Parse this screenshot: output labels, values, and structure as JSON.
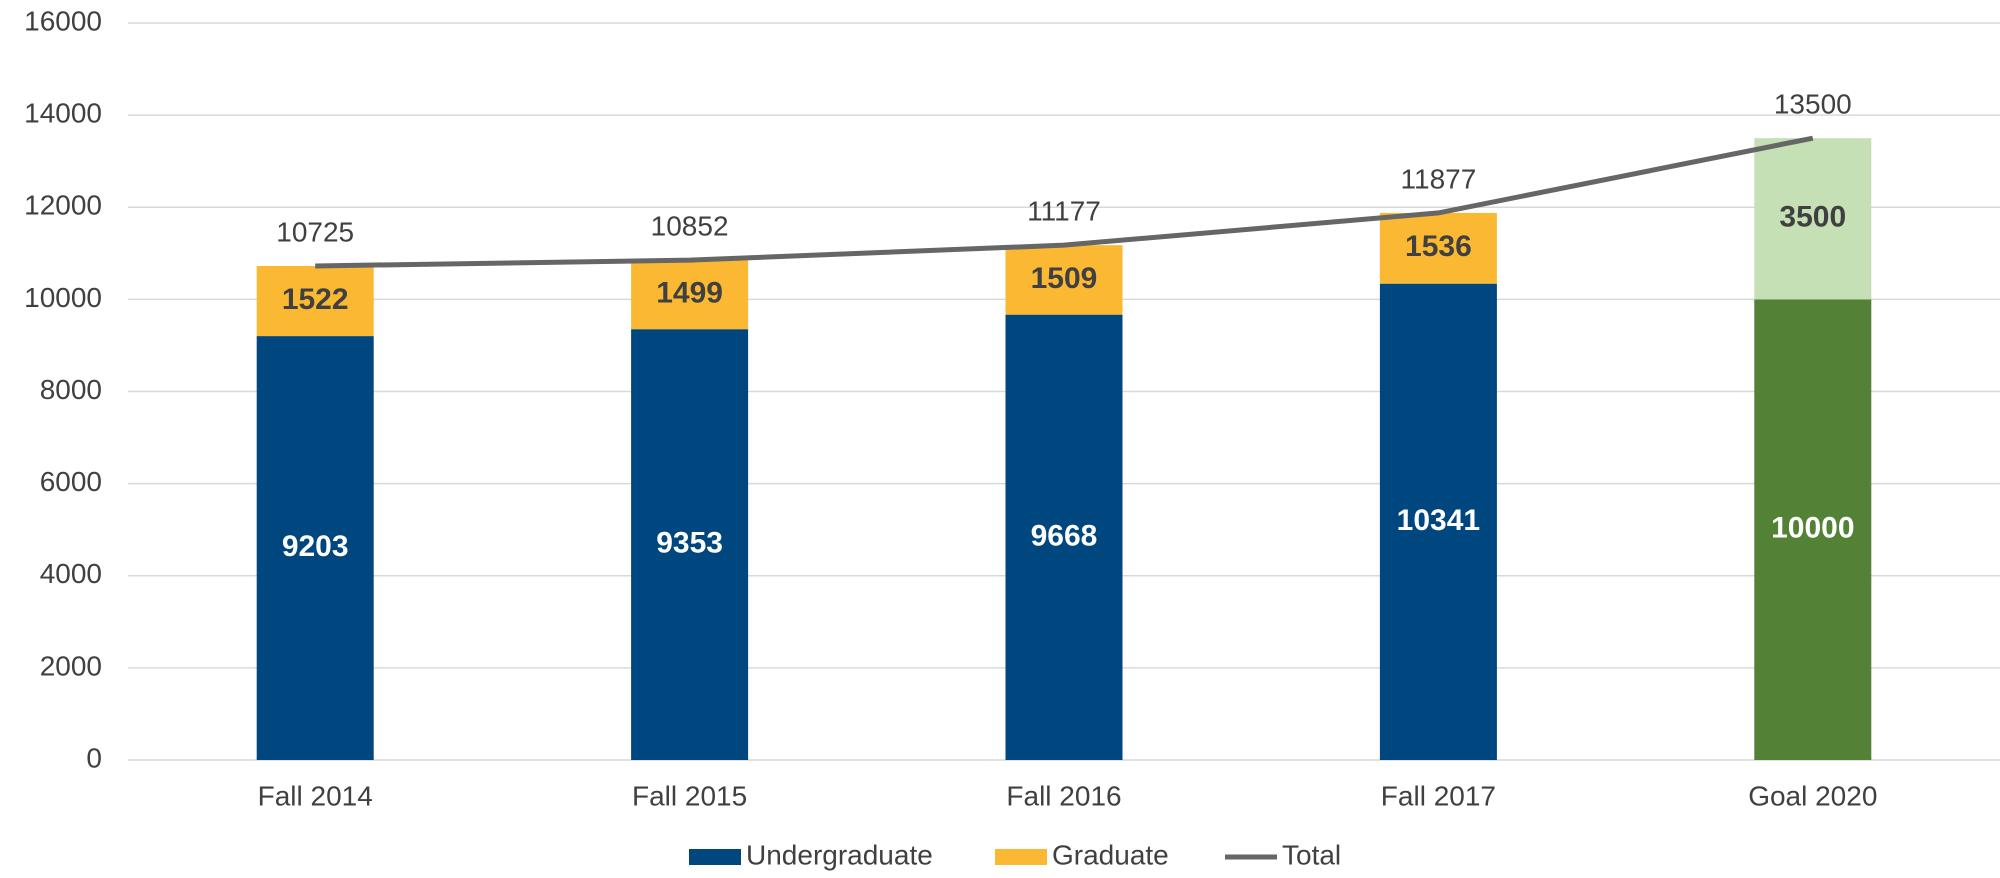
{
  "chart_data": {
    "type": "stacked_bar_line",
    "categories": [
      "Fall 2014",
      "Fall 2015",
      "Fall 2016",
      "Fall 2017",
      "Goal 2020"
    ],
    "series": [
      {
        "name": "Undergraduate",
        "type": "bar",
        "color": "#00467f",
        "colors": [
          "#00467f",
          "#00467f",
          "#00467f",
          "#00467f",
          "#538135"
        ],
        "values": [
          9203,
          9353,
          9668,
          10341,
          10000
        ]
      },
      {
        "name": "Graduate",
        "type": "bar",
        "color": "#fbb933",
        "colors": [
          "#fbb933",
          "#fbb933",
          "#fbb933",
          "#fbb933",
          "#c5e0b4"
        ],
        "values": [
          1522,
          1499,
          1509,
          1536,
          3500
        ]
      },
      {
        "name": "Total",
        "type": "line",
        "color": "#666666",
        "values": [
          10725,
          10852,
          11177,
          11877,
          13500
        ]
      }
    ],
    "ylim": [
      0,
      16000
    ],
    "yticks": [
      0,
      2000,
      4000,
      6000,
      8000,
      10000,
      12000,
      14000,
      16000
    ],
    "grid": true,
    "legend": "bottom"
  }
}
